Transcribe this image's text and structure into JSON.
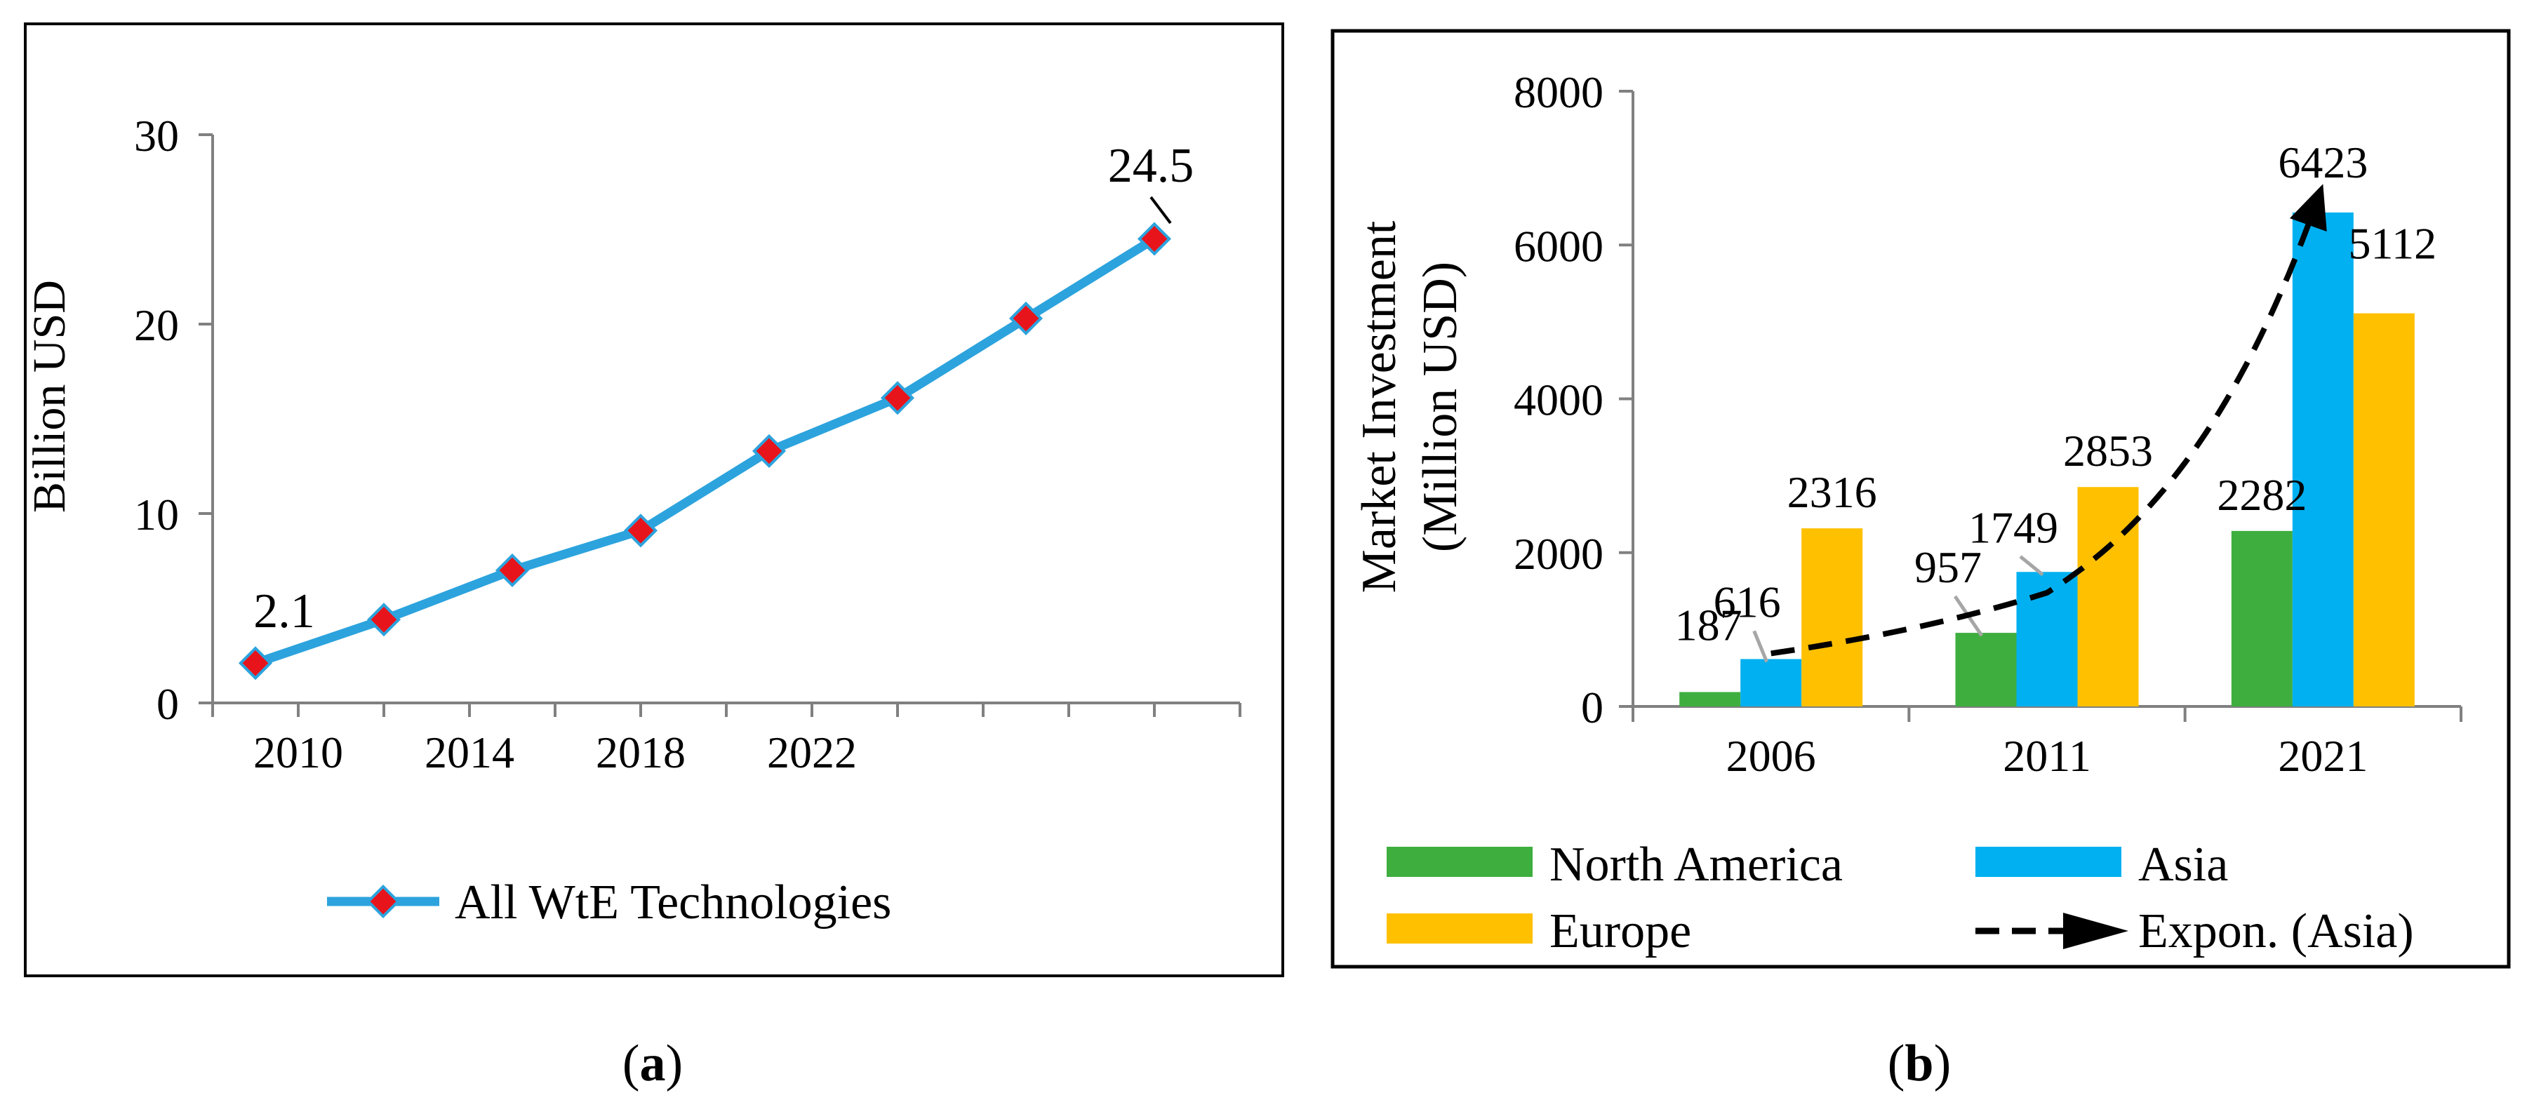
{
  "chart_data": [
    {
      "type": "line",
      "panel_label": "a",
      "title": "",
      "xlabel": "",
      "ylabel": "Billion USD",
      "x": [
        2009,
        2012,
        2015,
        2018,
        2021,
        2024,
        2027,
        2030
      ],
      "xticks": [
        2010,
        2014,
        2018,
        2022
      ],
      "yticks": [
        0,
        10,
        20,
        30
      ],
      "xlim": [
        2008,
        2032
      ],
      "ylim": [
        0,
        30
      ],
      "grid": false,
      "legend": "bottom",
      "series": [
        {
          "name": "All WtE Technologies",
          "values": [
            2.1,
            4.4,
            7.0,
            9.1,
            13.3,
            16.1,
            20.3,
            24.5
          ],
          "line_color": "#2CA3DD",
          "marker_color": "#E8141B"
        }
      ],
      "annotations": [
        {
          "text": "2.1",
          "x": 2009,
          "y": 2.1
        },
        {
          "text": "24.5",
          "x": 2030,
          "y": 24.5
        }
      ]
    },
    {
      "type": "bar",
      "panel_label": "b",
      "title": "",
      "xlabel": "",
      "ylabel_lines": [
        "Market Investment",
        "(Million USD)"
      ],
      "categories": [
        "2006",
        "2011",
        "2021"
      ],
      "yticks": [
        0,
        2000,
        4000,
        6000,
        8000
      ],
      "ylim": [
        0,
        8000
      ],
      "grid": false,
      "legend": "bottom",
      "series": [
        {
          "name": "North America",
          "values": [
            187,
            957,
            2282
          ],
          "color": "#3EAE3F"
        },
        {
          "name": "Asia",
          "values": [
            616,
            1749,
            6423
          ],
          "color": "#00B0F0"
        },
        {
          "name": "Europe",
          "values": [
            2316,
            2853,
            5112
          ],
          "color": "#FFC000"
        }
      ],
      "trendline": {
        "name": "Expon. (Asia)",
        "style": "dashed-arrow",
        "color": "#000000"
      }
    }
  ]
}
